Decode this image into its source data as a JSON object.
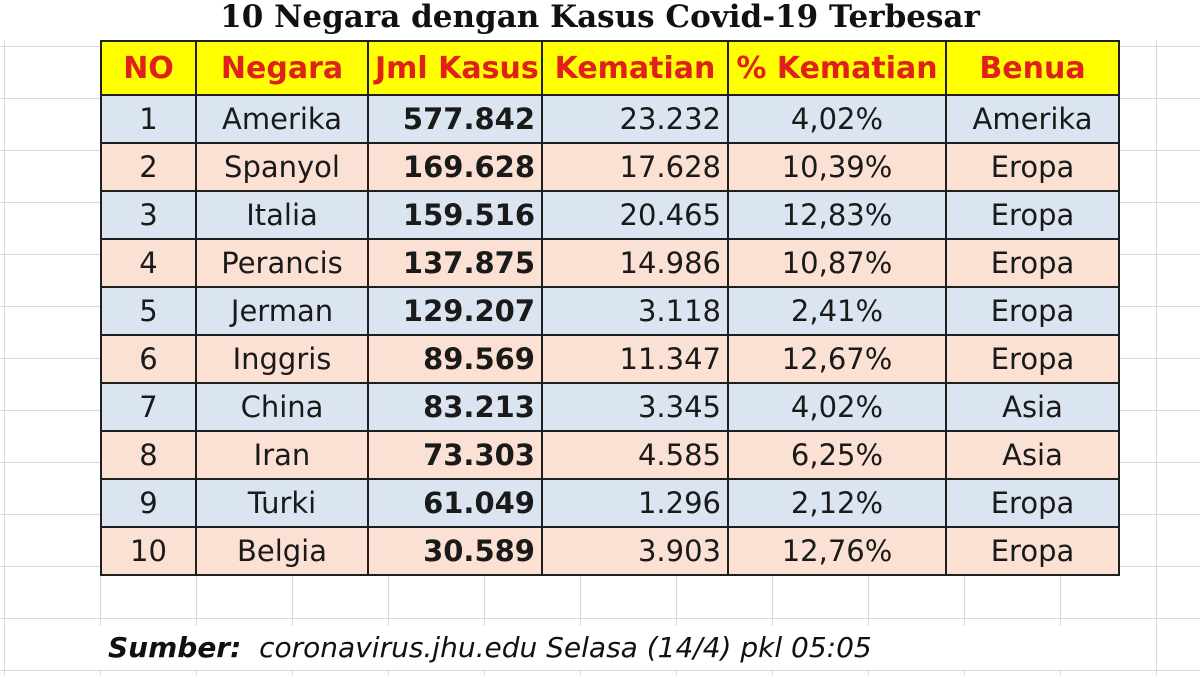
{
  "title": "10 Negara dengan Kasus Covid-19 Terbesar",
  "table": {
    "headers": [
      "NO",
      "Negara",
      "Jml Kasus",
      "Kematian",
      "% Kematian",
      "Benua"
    ],
    "rows": [
      {
        "no": "1",
        "negara": "Amerika",
        "kasus": "577.842",
        "kematian": "23.232",
        "persen": "4,02%",
        "benua": "Amerika"
      },
      {
        "no": "2",
        "negara": "Spanyol",
        "kasus": "169.628",
        "kematian": "17.628",
        "persen": "10,39%",
        "benua": "Eropa"
      },
      {
        "no": "3",
        "negara": "Italia",
        "kasus": "159.516",
        "kematian": "20.465",
        "persen": "12,83%",
        "benua": "Eropa"
      },
      {
        "no": "4",
        "negara": "Perancis",
        "kasus": "137.875",
        "kematian": "14.986",
        "persen": "10,87%",
        "benua": "Eropa"
      },
      {
        "no": "5",
        "negara": "Jerman",
        "kasus": "129.207",
        "kematian": "3.118",
        "persen": "2,41%",
        "benua": "Eropa"
      },
      {
        "no": "6",
        "negara": "Inggris",
        "kasus": "89.569",
        "kematian": "11.347",
        "persen": "12,67%",
        "benua": "Eropa"
      },
      {
        "no": "7",
        "negara": "China",
        "kasus": "83.213",
        "kematian": "3.345",
        "persen": "4,02%",
        "benua": "Asia"
      },
      {
        "no": "8",
        "negara": "Iran",
        "kasus": "73.303",
        "kematian": "4.585",
        "persen": "6,25%",
        "benua": "Asia"
      },
      {
        "no": "9",
        "negara": "Turki",
        "kasus": "61.049",
        "kematian": "1.296",
        "persen": "2,12%",
        "benua": "Eropa"
      },
      {
        "no": "10",
        "negara": "Belgia",
        "kasus": "30.589",
        "kematian": "3.903",
        "persen": "12,76%",
        "benua": "Eropa"
      }
    ]
  },
  "source": {
    "label": "Sumber:",
    "text": "coronavirus.jhu.edu Selasa (14/4) pkl 05:05"
  },
  "colors": {
    "header_bg": "#ffff00",
    "header_text": "#e0201b",
    "row_blue": "#dbe5f1",
    "row_pink": "#fbe1d4",
    "cases_text": "#c8161e"
  }
}
